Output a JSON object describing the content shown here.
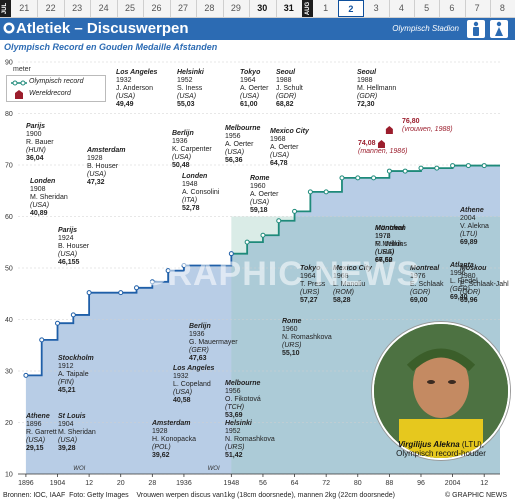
{
  "datebar": {
    "month_left": "JUL",
    "month_right": "AUG",
    "days": [
      "21",
      "22",
      "23",
      "24",
      "25",
      "26",
      "27",
      "28",
      "29",
      "30",
      "31",
      "1",
      "2",
      "3",
      "4",
      "5",
      "6",
      "7",
      "8"
    ],
    "selected_day": "2"
  },
  "header": {
    "title": "Atletiek – Discuswerpen",
    "venue": "Olympisch Stadion",
    "subtitle": "Olympisch Record en Gouden Medaille Afstanden"
  },
  "legend": {
    "olympic_record": "Olympisch record",
    "world_record": "Wereldrecord"
  },
  "colors": {
    "blue": "#2c6bb3",
    "teal": "#1e8a7a",
    "dark_red": "#9b1d2c"
  },
  "chart_data": {
    "type": "line",
    "x_ticks": [
      "1896",
      "1904",
      "12",
      "20",
      "28",
      "1936",
      "1948",
      "56",
      "64",
      "72",
      "80",
      "88",
      "96",
      "2004",
      "12"
    ],
    "y_ticks": [
      10,
      20,
      30,
      40,
      50,
      60,
      70,
      80,
      90
    ],
    "ylabel": "meter",
    "ylim": [
      10,
      90
    ],
    "xlim": [
      1894,
      2016
    ],
    "series": [
      {
        "name": "Olympisch record",
        "x": [
          1896,
          1900,
          1904,
          1908,
          1912,
          1920,
          1924,
          1928,
          1932,
          1936,
          1948,
          1952,
          1956,
          1960,
          1964,
          1968,
          1972,
          1976,
          1980,
          1984,
          1988,
          1992,
          1996,
          2000,
          2004,
          2008,
          2012
        ],
        "y": [
          29.15,
          36.04,
          39.28,
          40.89,
          45.21,
          45.21,
          46.155,
          47.32,
          49.49,
          50.48,
          52.78,
          55.03,
          56.36,
          59.18,
          61.0,
          64.78,
          64.78,
          67.5,
          67.5,
          67.5,
          68.82,
          68.82,
          69.4,
          69.4,
          69.89,
          69.89,
          69.89
        ]
      }
    ],
    "world_record": [
      {
        "value": 74.08,
        "label": "74,08",
        "note": "(mannen, 1986)",
        "year": 1986
      },
      {
        "value": 76.8,
        "label": "76,80",
        "note": "(vrouwen, 1988)",
        "year": 1988
      }
    ],
    "men_annotations": [
      {
        "city": "Athene",
        "year": "1896",
        "name": "R. Garrett",
        "country": "(USA)",
        "dist": "29,15"
      },
      {
        "city": "Parijs",
        "year": "1900",
        "name": "R. Bauer",
        "country": "(HUN)",
        "dist": "36,04"
      },
      {
        "city": "St Louis",
        "year": "1904",
        "name": "M. Sheridan",
        "country": "(USA)",
        "dist": "39,28"
      },
      {
        "city": "Londen",
        "year": "1908",
        "name": "M. Sheridan",
        "country": "(USA)",
        "dist": "40,89"
      },
      {
        "city": "Stockholm",
        "year": "1912",
        "name": "A. Taipale",
        "country": "(FIN)",
        "dist": "45,21"
      },
      {
        "city": "Parijs",
        "year": "1924",
        "name": "B. Houser",
        "country": "(USA)",
        "dist": "46,155"
      },
      {
        "city": "Amsterdam",
        "year": "1928",
        "name": "B. Houser",
        "country": "(USA)",
        "dist": "47,32"
      },
      {
        "city": "Los Angeles",
        "year": "1932",
        "name": "J. Anderson",
        "country": "(USA)",
        "dist": "49,49"
      },
      {
        "city": "Berlijn",
        "year": "1936",
        "name": "K. Carpenter",
        "country": "(USA)",
        "dist": "50,48"
      },
      {
        "city": "Londen",
        "year": "1948",
        "name": "A. Consolini",
        "country": "(ITA)",
        "dist": "52,78"
      },
      {
        "city": "Helsinki",
        "year": "1952",
        "name": "S. Iness",
        "country": "(USA)",
        "dist": "55,03"
      },
      {
        "city": "Melbourne",
        "year": "1956",
        "name": "A. Oerter",
        "country": "(USA)",
        "dist": "56,36"
      },
      {
        "city": "Rome",
        "year": "1960",
        "name": "A. Oerter",
        "country": "(USA)",
        "dist": "59,18"
      },
      {
        "city": "Tokyo",
        "year": "1964",
        "name": "A. Oerter",
        "country": "(USA)",
        "dist": "61,00"
      },
      {
        "city": "Mexico City",
        "year": "1968",
        "name": "A. Oerter",
        "country": "(USA)",
        "dist": "64,78"
      },
      {
        "city": "München",
        "year": "1972",
        "name": "L. Danek",
        "country": "(TCH)",
        "dist": "64,40"
      },
      {
        "city": "Montreal",
        "year": "1976",
        "name": "M. Wilkins",
        "country": "(USA)",
        "dist": "67,50"
      },
      {
        "city": "Moskou",
        "year": "1980",
        "name": "V. Rasjtsjoepkin",
        "country": "(URS)",
        "dist": "66,64"
      },
      {
        "city": "Seoul",
        "year": "1988",
        "name": "J. Schult",
        "country": "(GDR)",
        "dist": "68,82"
      },
      {
        "city": "Atlanta",
        "year": "1996",
        "name": "L. Riedel",
        "country": "(GER)",
        "dist": "69,40"
      },
      {
        "city": "Athene",
        "year": "2004",
        "name": "V. Alekna",
        "country": "(LTU)",
        "dist": "69,89"
      }
    ],
    "women_annotations": [
      {
        "city": "Amsterdam",
        "year": "1928",
        "name": "H. Konopacka",
        "country": "(POL)",
        "dist": "39,62"
      },
      {
        "city": "Los Angeles",
        "year": "1932",
        "name": "L. Copeland",
        "country": "(USA)",
        "dist": "40,58"
      },
      {
        "city": "Berlijn",
        "year": "1936",
        "name": "G. Mauermayer",
        "country": "(GER)",
        "dist": "47,63"
      },
      {
        "city": "Helsinki",
        "year": "1952",
        "name": "N. Romashkova",
        "country": "(URS)",
        "dist": "51,42"
      },
      {
        "city": "Melbourne",
        "year": "1956",
        "name": "O. Fikotová",
        "country": "(TCH)",
        "dist": "53,69"
      },
      {
        "city": "Rome",
        "year": "1960",
        "name": "N. Romashkova",
        "country": "(URS)",
        "dist": "55,10"
      },
      {
        "city": "Tokyo",
        "year": "1964",
        "name": "T. Press",
        "country": "(URS)",
        "dist": "57,27"
      },
      {
        "city": "Mexico City",
        "year": "1968",
        "name": "L. Manoliu",
        "country": "(ROM)",
        "dist": "58,28"
      },
      {
        "city": "München",
        "year": "1972",
        "name": "F. Melnik",
        "country": "(URS)",
        "dist": "66,62"
      },
      {
        "city": "Montreal",
        "year": "1976",
        "name": "E. Schlaak",
        "country": "(GDR)",
        "dist": "69,00"
      },
      {
        "city": "Moskou",
        "year": "1980",
        "name": "E. Schlaak-Jahl",
        "country": "(GDR)",
        "dist": "69,96"
      },
      {
        "city": "Seoul",
        "year": "1988",
        "name": "M. Hellmann",
        "country": "(GDR)",
        "dist": "72,30"
      }
    ],
    "woi_labels": [
      "WOI",
      "WOI"
    ]
  },
  "photo": {
    "name": "Virgilijus Alekna",
    "country": "(LTU),",
    "role": "Olympisch record-houder"
  },
  "footer": {
    "sources": "Bronnen: IOC, IAAF",
    "photo_credit": "Foto: Getty Images",
    "note": "Vrouwen werpen discus van1kg (18cm doorsnede), mannen 2kg (22cm doorsnede)",
    "copyright": "© GRAPHIC NEWS"
  },
  "watermark": "GRAPHIC NEWS"
}
